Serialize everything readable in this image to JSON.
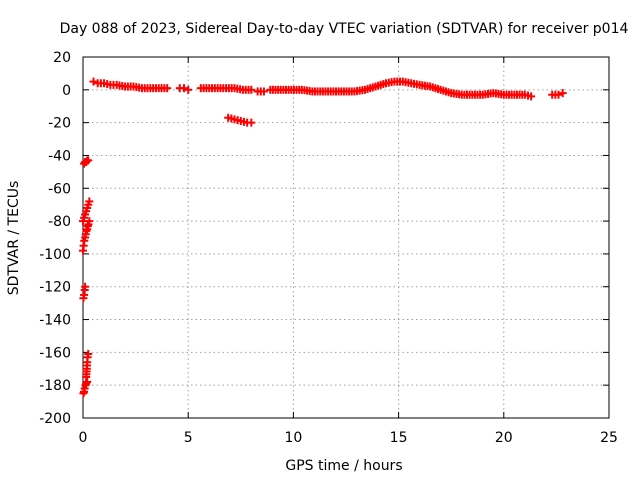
{
  "chart_data": {
    "type": "scatter",
    "title": "Day 088 of 2023, Sidereal Day-to-day VTEC variation (SDTVAR) for receiver p014",
    "xlabel": "GPS time / hours",
    "ylabel": "SDTVAR / TECUs",
    "xlim": [
      0,
      25
    ],
    "ylim": [
      -200,
      20
    ],
    "xticks": [
      0,
      5,
      10,
      15,
      20,
      25
    ],
    "yticks": [
      -200,
      -180,
      -160,
      -140,
      -120,
      -100,
      -80,
      -60,
      -40,
      -20,
      0,
      20
    ],
    "grid": true,
    "marker": "plus",
    "color": "#ff0000",
    "series": [
      {
        "name": "SDTVAR",
        "segments": [
          {
            "x": [
              0.02,
              0.05,
              0.08,
              0.12,
              0.15,
              0.2
            ],
            "y": [
              -185,
              -184,
              -182,
              -180,
              -179,
              -178
            ]
          },
          {
            "x": [
              0.15,
              0.18,
              0.2,
              0.22,
              0.25
            ],
            "y": [
              -175,
              -170,
              -166,
              -163,
              -161
            ]
          },
          {
            "x": [
              0.02,
              0.05,
              0.08,
              0.1
            ],
            "y": [
              -127,
              -125,
              -122,
              -120
            ]
          },
          {
            "x": [
              0.0,
              0.03,
              0.06,
              0.1,
              0.13,
              0.16,
              0.2,
              0.23,
              0.26,
              0.3
            ],
            "y": [
              -98,
              -95,
              -92,
              -90,
              -88,
              -86,
              -85,
              -83,
              -82,
              -80
            ]
          },
          {
            "x": [
              0.0,
              0.05,
              0.1,
              0.15,
              0.2,
              0.25,
              0.3
            ],
            "y": [
              -80,
              -78,
              -76,
              -74,
              -72,
              -70,
              -68
            ]
          },
          {
            "x": [
              0.05,
              0.1,
              0.15,
              0.2,
              0.25
            ],
            "y": [
              -45,
              -44,
              -44,
              -43,
              -43
            ]
          },
          {
            "x": [
              0.5,
              0.7,
              1.0,
              1.3,
              1.6,
              2.0,
              2.4,
              2.8,
              3.2,
              3.6,
              4.0
            ],
            "y": [
              5,
              4,
              4,
              3,
              3,
              2,
              2,
              1,
              1,
              1,
              1
            ]
          },
          {
            "x": [
              4.6,
              4.8,
              5.0
            ],
            "y": [
              1,
              1,
              0
            ]
          },
          {
            "x": [
              5.6,
              6.0,
              6.4,
              6.8,
              7.2,
              7.6,
              8.0
            ],
            "y": [
              1,
              1,
              1,
              1,
              1,
              0,
              0
            ]
          },
          {
            "x": [
              6.9,
              7.2,
              7.5,
              7.8,
              8.0
            ],
            "y": [
              -17,
              -18,
              -19,
              -20,
              -20
            ]
          },
          {
            "x": [
              8.3,
              8.6
            ],
            "y": [
              -1,
              -1
            ]
          },
          {
            "x": [
              8.9,
              9.4,
              9.9,
              10.4,
              10.9,
              11.4,
              11.9,
              12.4,
              12.9,
              13.4,
              13.9,
              14.4,
              14.8,
              15.2,
              15.6,
              16.0,
              16.5,
              17.0,
              17.5,
              18.0,
              18.5,
              19.0,
              19.5,
              20.0,
              20.5,
              21.0,
              21.3
            ],
            "y": [
              0,
              0,
              0,
              0,
              -1,
              -1,
              -1,
              -1,
              -1,
              0,
              2,
              4,
              5,
              5,
              4,
              3,
              2,
              0,
              -2,
              -3,
              -3,
              -3,
              -2,
              -3,
              -3,
              -3,
              -4
            ]
          },
          {
            "x": [
              22.3,
              22.6,
              22.8
            ],
            "y": [
              -3,
              -3,
              -2
            ]
          }
        ]
      }
    ]
  }
}
